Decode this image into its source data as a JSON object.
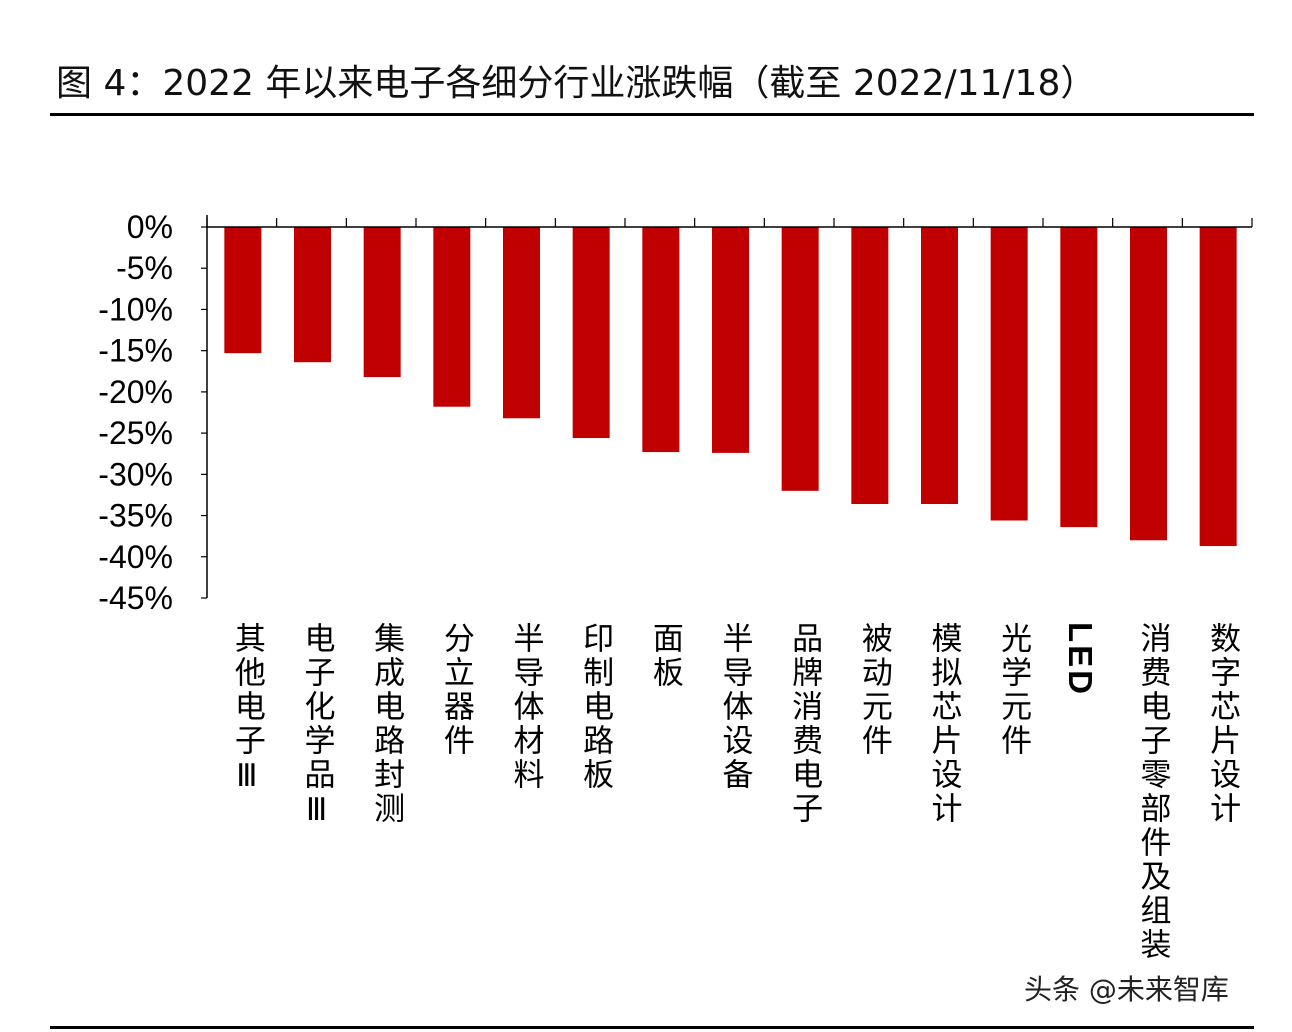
{
  "title": "图 4：2022 年以来电子各细分行业涨跌幅（截至 2022/11/18）",
  "watermark": "头条 @未来智库",
  "chart_data": {
    "type": "bar",
    "title": "图 4：2022 年以来电子各细分行业涨跌幅（截至 2022/11/18）",
    "categories": [
      "其他电子Ⅲ",
      "电子化学品Ⅲ",
      "集成电路封测",
      "分立器件",
      "半导体材料",
      "印制电路板",
      "面板",
      "半导体设备",
      "品牌消费电子",
      "被动元件",
      "模拟芯片设计",
      "光学元件",
      "LED",
      "消费电子零部件及组装",
      "数字芯片设计"
    ],
    "values": [
      -15.3,
      -16.4,
      -18.2,
      -21.8,
      -23.2,
      -25.6,
      -27.3,
      -27.4,
      -32.0,
      -33.6,
      -33.6,
      -35.6,
      -36.4,
      -38.0,
      -38.7
    ],
    "unit": "%",
    "ylim": [
      -45,
      0
    ],
    "yticks": [
      "0%",
      "-5%",
      "-10%",
      "-15%",
      "-20%",
      "-25%",
      "-30%",
      "-35%",
      "-40%",
      "-45%"
    ],
    "grid": false,
    "bar_color": "#c00000"
  }
}
